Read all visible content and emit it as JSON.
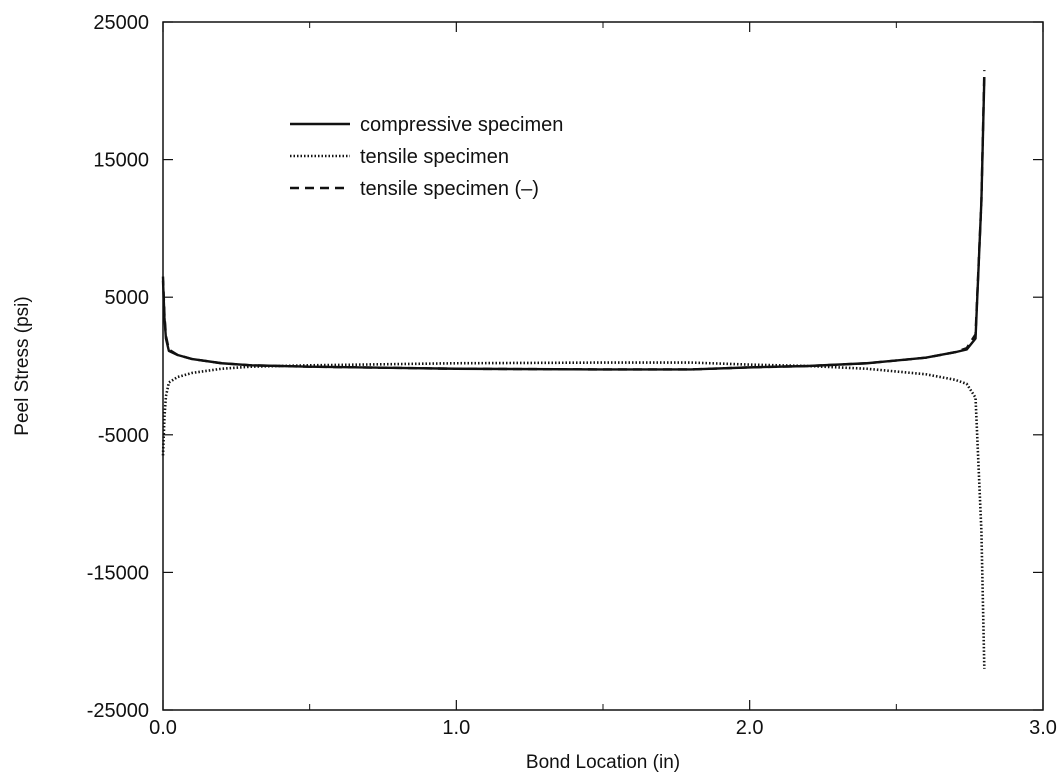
{
  "chart_data": {
    "type": "line",
    "title": "",
    "xlabel": "Bond Location (in)",
    "ylabel": "Peel Stress (psi)",
    "xlim": [
      0.0,
      3.0
    ],
    "ylim": [
      -25000,
      25000
    ],
    "xticks": [
      0.0,
      1.0,
      2.0,
      3.0
    ],
    "xtick_labels": [
      "0.0",
      "1.0",
      "2.0",
      "3.0"
    ],
    "yticks": [
      -25000,
      -15000,
      -5000,
      5000,
      15000,
      25000
    ],
    "ytick_labels": [
      "-25000",
      "-15000",
      "-5000",
      "5000",
      "15000",
      "25000"
    ],
    "grid": false,
    "legend_position": "top-left",
    "series": [
      {
        "name": "compressive specimen",
        "style": "solid",
        "x": [
          0.0,
          0.005,
          0.01,
          0.02,
          0.05,
          0.1,
          0.2,
          0.3,
          0.5,
          1.0,
          1.5,
          1.8,
          2.0,
          2.2,
          2.4,
          2.6,
          2.7,
          2.74,
          2.77,
          2.79,
          2.8
        ],
        "y": [
          6200,
          3500,
          2000,
          1100,
          800,
          500,
          200,
          50,
          -50,
          -200,
          -250,
          -250,
          -100,
          0,
          200,
          600,
          1000,
          1200,
          2000,
          12000,
          21000
        ]
      },
      {
        "name": "tensile specimen",
        "style": "dotted",
        "x": [
          0.0,
          0.005,
          0.01,
          0.02,
          0.05,
          0.1,
          0.2,
          0.3,
          0.5,
          1.0,
          1.5,
          1.8,
          2.0,
          2.2,
          2.4,
          2.6,
          2.7,
          2.74,
          2.77,
          2.79,
          2.8
        ],
        "y": [
          -6500,
          -3700,
          -2200,
          -1200,
          -800,
          -500,
          -200,
          -50,
          50,
          200,
          250,
          250,
          100,
          0,
          -200,
          -600,
          -1000,
          -1300,
          -2300,
          -12000,
          -22000
        ]
      },
      {
        "name": "tensile specimen (–)",
        "style": "dashed",
        "x": [
          0.0,
          0.005,
          0.01,
          0.02,
          0.05,
          0.1,
          0.2,
          0.3,
          0.5,
          1.0,
          1.5,
          1.8,
          2.0,
          2.2,
          2.4,
          2.6,
          2.7,
          2.74,
          2.77,
          2.79,
          2.8
        ],
        "y": [
          6500,
          3700,
          2200,
          1200,
          800,
          500,
          200,
          50,
          -50,
          -200,
          -250,
          -250,
          -100,
          0,
          200,
          600,
          1000,
          1300,
          2300,
          12000,
          21500
        ]
      }
    ]
  }
}
